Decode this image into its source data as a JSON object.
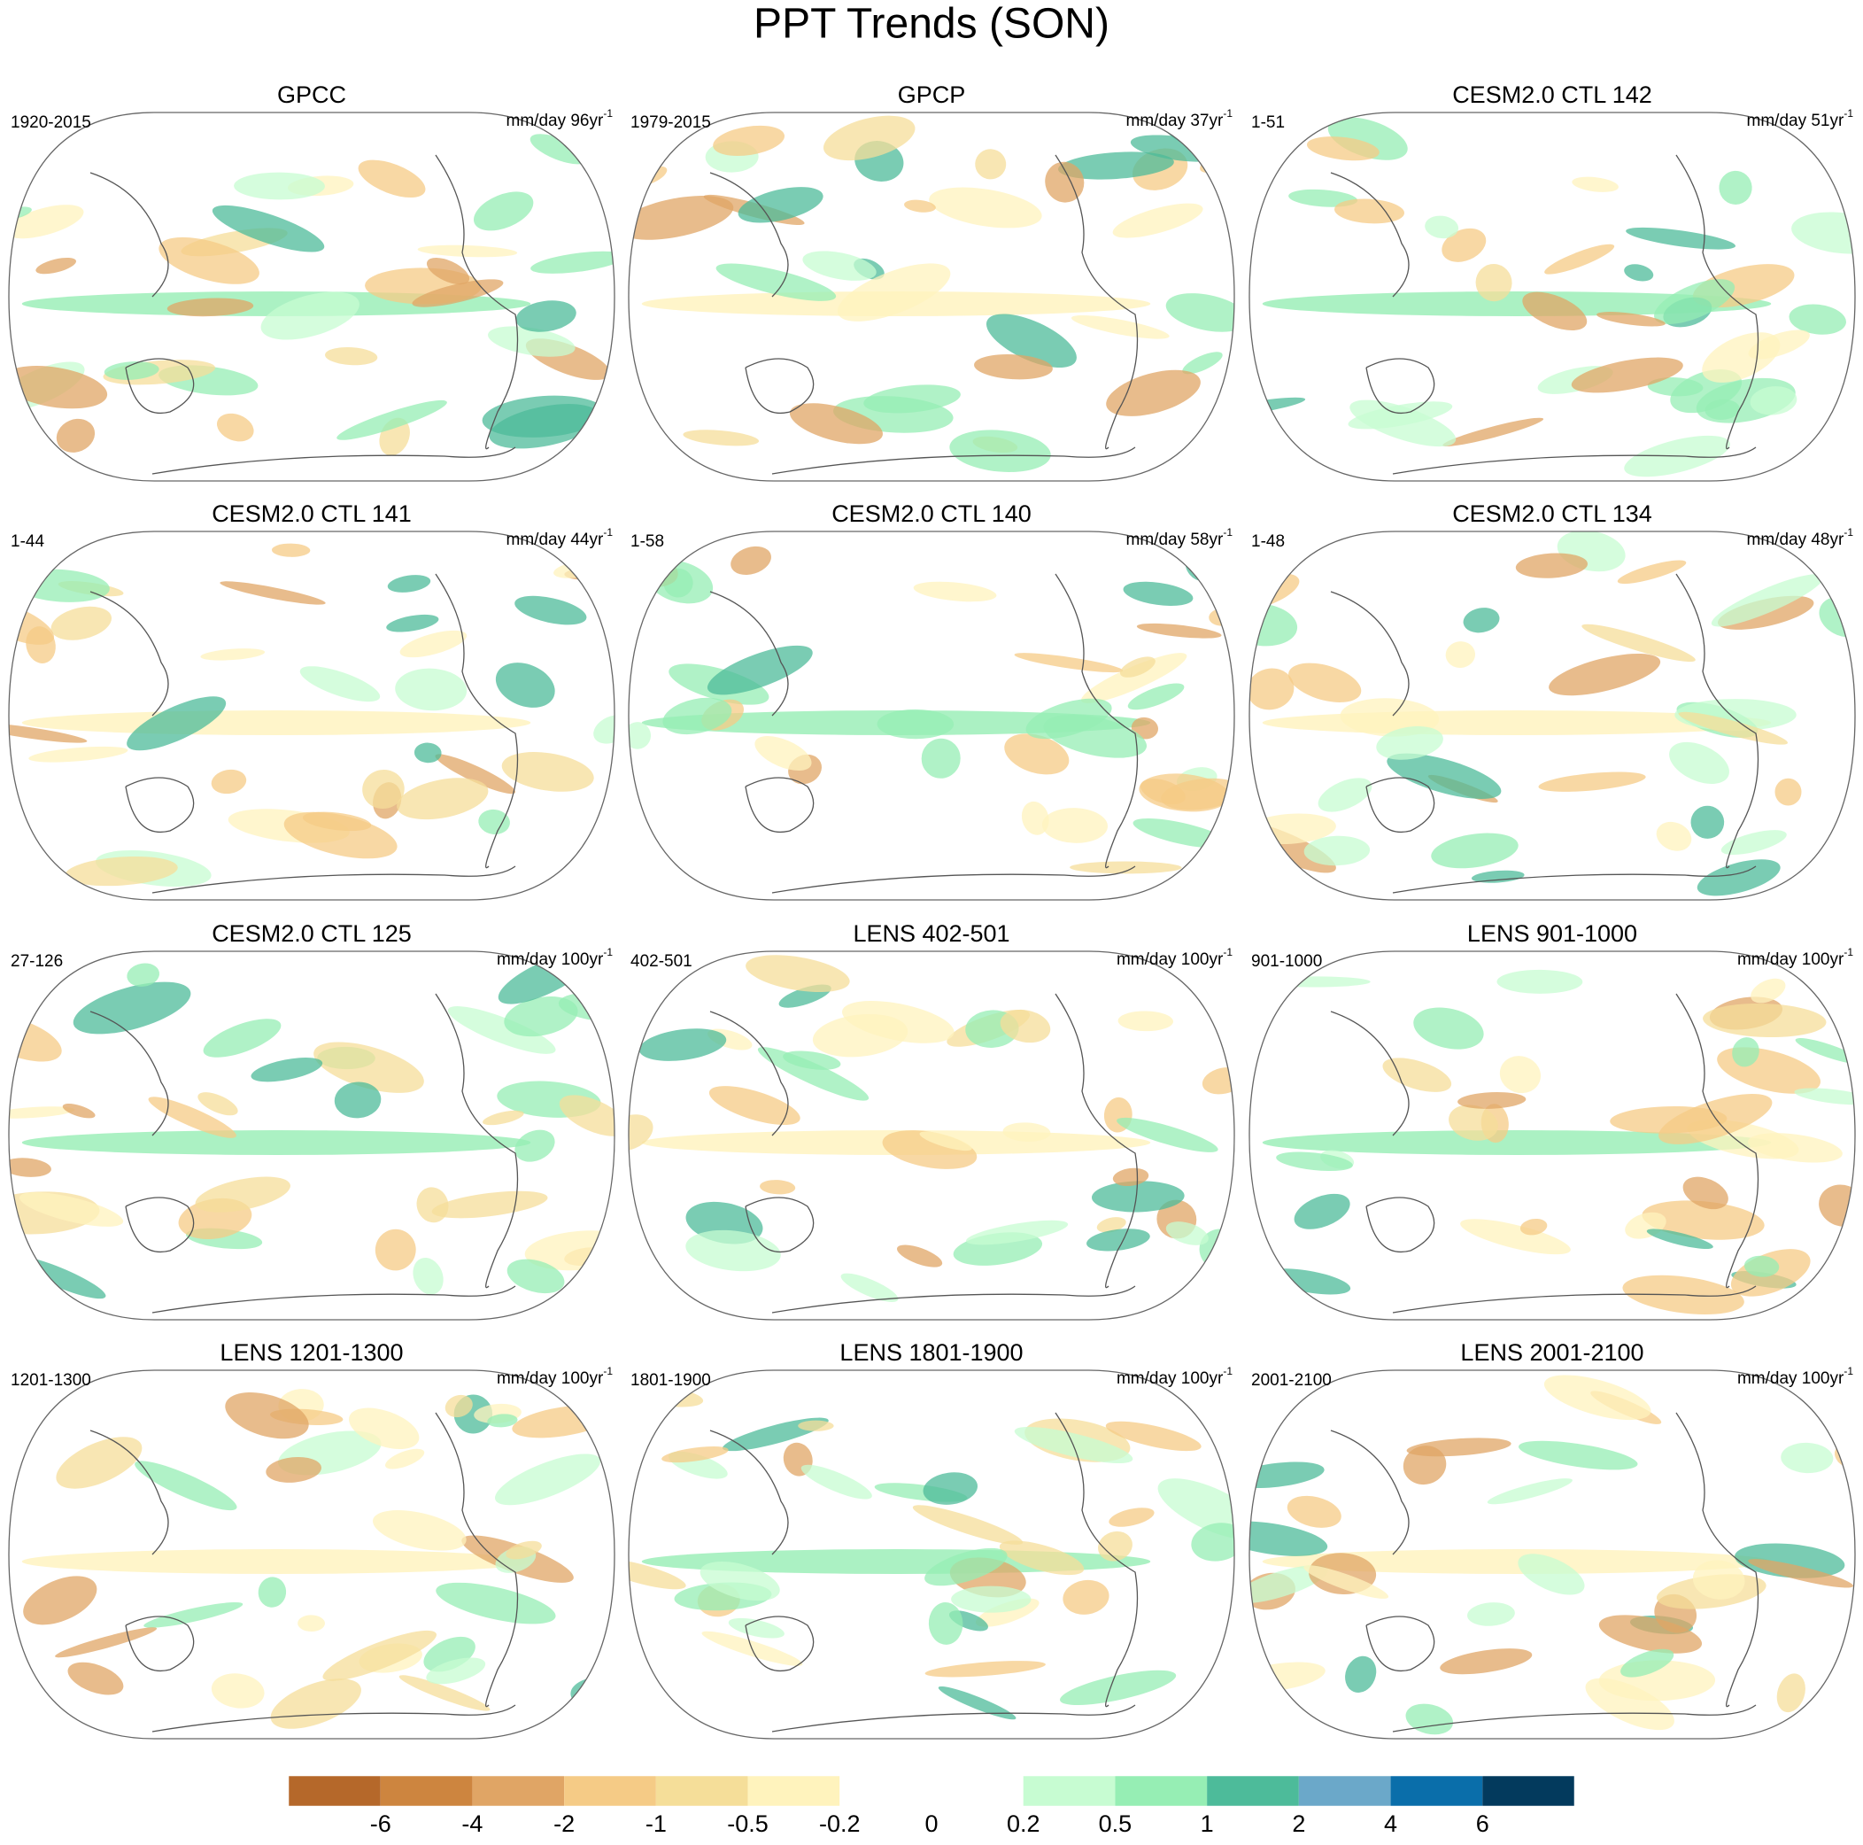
{
  "title": "PPT Trends (SON)",
  "panels": [
    {
      "title": "GPCC",
      "period": "1920-2015",
      "units": "mm/day 96yr",
      "units_exp": "-1"
    },
    {
      "title": "GPCP",
      "period": "1979-2015",
      "units": "mm/day 37yr",
      "units_exp": "-1"
    },
    {
      "title": "CESM2.0 CTL 142",
      "period": "1-51",
      "units": "mm/day 51yr",
      "units_exp": "-1"
    },
    {
      "title": "CESM2.0 CTL 141",
      "period": "1-44",
      "units": "mm/day 44yr",
      "units_exp": "-1"
    },
    {
      "title": "CESM2.0 CTL 140",
      "period": "1-58",
      "units": "mm/day 58yr",
      "units_exp": "-1"
    },
    {
      "title": "CESM2.0 CTL 134",
      "period": "1-48",
      "units": "mm/day 48yr",
      "units_exp": "-1"
    },
    {
      "title": "CESM2.0 CTL 125",
      "period": "27-126",
      "units": "mm/day 100yr",
      "units_exp": "-1"
    },
    {
      "title": "LENS 402-501",
      "period": "402-501",
      "units": "mm/day 100yr",
      "units_exp": "-1"
    },
    {
      "title": "LENS 901-1000",
      "period": "901-1000",
      "units": "mm/day 100yr",
      "units_exp": "-1"
    },
    {
      "title": "LENS 1201-1300",
      "period": "1201-1300",
      "units": "mm/day 100yr",
      "units_exp": "-1"
    },
    {
      "title": "LENS 1801-1900",
      "period": "1801-1900",
      "units": "mm/day 100yr",
      "units_exp": "-1"
    },
    {
      "title": "LENS 2001-2100",
      "period": "2001-2100",
      "units": "mm/day 100yr",
      "units_exp": "-1"
    }
  ],
  "colorbar": {
    "colors": [
      "#b5682a",
      "#cd853f",
      "#e0a565",
      "#f5cb86",
      "#f5de99",
      "#fff3bd",
      "#ffffff",
      "#ffffff",
      "#c7fcd2",
      "#96eeb4",
      "#4dbb9a",
      "#6ba8c9",
      "#0a6eaa",
      "#033a5d"
    ],
    "levels": [
      -6,
      -4,
      -2,
      -1,
      -0.5,
      -0.2,
      0,
      0.2,
      0.5,
      1,
      2,
      4,
      6
    ]
  }
}
